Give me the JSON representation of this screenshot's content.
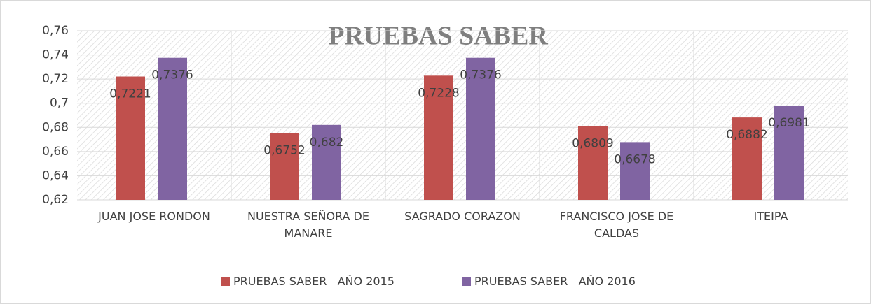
{
  "chart_data": {
    "type": "bar",
    "title": "PRUEBAS SABER",
    "categories": [
      "JUAN JOSE RONDON",
      "NUESTRA SEÑORA DE MANARE",
      "SAGRADO CORAZON",
      "FRANCISCO JOSE DE CALDAS",
      "ITEIPA"
    ],
    "series": [
      {
        "name": "PRUEBAS SABER   AÑO 2015",
        "color": "#c0504d",
        "values": [
          0.7221,
          0.6752,
          0.7228,
          0.6809,
          0.6882
        ],
        "value_labels": [
          "0,7221",
          "0,6752",
          "0,7228",
          "0,6809",
          "0,6882"
        ]
      },
      {
        "name": "PRUEBAS SABER   AÑO 2016",
        "color": "#8064a2",
        "values": [
          0.7376,
          0.682,
          0.7376,
          0.6678,
          0.6981
        ],
        "value_labels": [
          "0,7376",
          "0,682",
          "0,7376",
          "0,6678",
          "0,6981"
        ]
      }
    ],
    "ylim": [
      0.62,
      0.76
    ],
    "yticks": [
      {
        "value": 0.62,
        "label": "0,62"
      },
      {
        "value": 0.64,
        "label": "0,64"
      },
      {
        "value": 0.66,
        "label": "0,66"
      },
      {
        "value": 0.68,
        "label": "0,68"
      },
      {
        "value": 0.7,
        "label": "0,7"
      },
      {
        "value": 0.72,
        "label": "0,72"
      },
      {
        "value": 0.74,
        "label": "0,74"
      },
      {
        "value": 0.76,
        "label": "0,76"
      }
    ],
    "grid": true,
    "legend": "bottom"
  }
}
